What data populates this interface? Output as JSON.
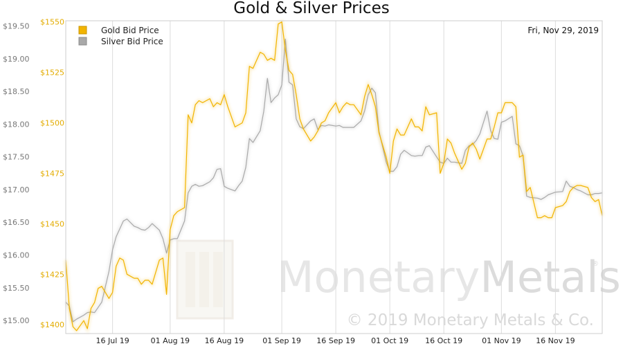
{
  "chart_data": {
    "type": "line",
    "title": "Gold & Silver Prices",
    "date_label": "Fri, Nov 29, 2019",
    "x_ticks": [
      "16 Jul 19",
      "01 Aug 19",
      "16 Aug 19",
      "01 Sep 19",
      "16 Sep 19",
      "01 Oct 19",
      "16 Oct 19",
      "01 Nov 19",
      "16 Nov 19"
    ],
    "x_range": [
      "2019-07-03",
      "2019-11-29"
    ],
    "y_left": {
      "unit_prefix": "$",
      "ylim": [
        14.8,
        19.58
      ],
      "ticks": [
        "$15.00",
        "$15.50",
        "$16.00",
        "$16.50",
        "$17.00",
        "$17.50",
        "$18.00",
        "$18.50",
        "$19.00",
        "$19.50"
      ]
    },
    "y_right": {
      "unit_prefix": "$",
      "ylim": [
        1395.6,
        1550.6
      ],
      "ticks": [
        "$1400",
        "$1425",
        "$1450",
        "$1475",
        "$1500",
        "$1525",
        "$1550"
      ]
    },
    "grid": "vertical",
    "legend": "top-left",
    "colors": {
      "gold": "#f2b400",
      "silver": "#a9a9a9"
    },
    "series": [
      {
        "name": "Gold Bid Price",
        "axis": "right",
        "x": [
          "2019-07-03",
          "2019-07-04",
          "2019-07-05",
          "2019-07-06",
          "2019-07-08",
          "2019-07-09",
          "2019-07-10",
          "2019-07-11",
          "2019-07-12",
          "2019-07-13",
          "2019-07-15",
          "2019-07-16",
          "2019-07-17",
          "2019-07-18",
          "2019-07-19",
          "2019-07-20",
          "2019-07-22",
          "2019-07-23",
          "2019-07-24",
          "2019-07-25",
          "2019-07-26",
          "2019-07-27",
          "2019-07-29",
          "2019-07-30",
          "2019-07-31",
          "2019-08-01",
          "2019-08-02",
          "2019-08-03",
          "2019-08-05",
          "2019-08-06",
          "2019-08-07",
          "2019-08-08",
          "2019-08-09",
          "2019-08-10",
          "2019-08-12",
          "2019-08-13",
          "2019-08-14",
          "2019-08-15",
          "2019-08-16",
          "2019-08-17",
          "2019-08-19",
          "2019-08-20",
          "2019-08-21",
          "2019-08-22",
          "2019-08-23",
          "2019-08-24",
          "2019-08-26",
          "2019-08-27",
          "2019-08-28",
          "2019-08-29",
          "2019-08-30",
          "2019-08-31",
          "2019-09-01",
          "2019-09-02",
          "2019-09-03",
          "2019-09-04",
          "2019-09-05",
          "2019-09-06",
          "2019-09-07",
          "2019-09-09",
          "2019-09-10",
          "2019-09-11",
          "2019-09-12",
          "2019-09-13",
          "2019-09-14",
          "2019-09-16",
          "2019-09-17",
          "2019-09-18",
          "2019-09-19",
          "2019-09-20",
          "2019-09-21",
          "2019-09-23",
          "2019-09-24",
          "2019-09-25",
          "2019-09-26",
          "2019-09-27",
          "2019-09-28",
          "2019-09-30",
          "2019-10-01",
          "2019-10-02",
          "2019-10-03",
          "2019-10-04",
          "2019-10-05",
          "2019-10-07",
          "2019-10-08",
          "2019-10-09",
          "2019-10-10",
          "2019-10-11",
          "2019-10-12",
          "2019-10-14",
          "2019-10-15",
          "2019-10-16",
          "2019-10-17",
          "2019-10-18",
          "2019-10-19",
          "2019-10-21",
          "2019-10-22",
          "2019-10-23",
          "2019-10-24",
          "2019-10-25",
          "2019-10-26",
          "2019-10-28",
          "2019-10-29",
          "2019-10-30",
          "2019-10-31",
          "2019-11-01",
          "2019-11-02",
          "2019-11-04",
          "2019-11-05",
          "2019-11-06",
          "2019-11-07",
          "2019-11-08",
          "2019-11-09",
          "2019-11-11",
          "2019-11-12",
          "2019-11-13",
          "2019-11-14",
          "2019-11-15",
          "2019-11-16",
          "2019-11-18",
          "2019-11-19",
          "2019-11-20",
          "2019-11-21",
          "2019-11-22",
          "2019-11-23",
          "2019-11-25",
          "2019-11-26",
          "2019-11-27",
          "2019-11-28",
          "2019-11-29"
        ],
        "values": [
          1432,
          1408,
          1399,
          1397,
          1402,
          1398,
          1408,
          1411,
          1418,
          1419,
          1413,
          1416,
          1429,
          1433,
          1432,
          1425,
          1423,
          1423,
          1420,
          1422,
          1422,
          1420,
          1432,
          1433,
          1415,
          1447,
          1454,
          1456,
          1458,
          1504,
          1500,
          1509,
          1511,
          1510,
          1512,
          1508,
          1510,
          1509,
          1514,
          1508,
          1498,
          1499,
          1500,
          1505,
          1528,
          1527,
          1535,
          1534,
          1531,
          1532,
          1531,
          1549,
          1550,
          1536,
          1526,
          1524,
          1514,
          1502,
          1497,
          1491,
          1493,
          1496,
          1500,
          1501,
          1505,
          1510,
          1505,
          1508,
          1510,
          1509,
          1509,
          1504,
          1513,
          1519,
          1514,
          1508,
          1495,
          1483,
          1475,
          1491,
          1497,
          1494,
          1494,
          1502,
          1498,
          1498,
          1496,
          1508,
          1504,
          1505,
          1475,
          1480,
          1492,
          1490,
          1485,
          1477,
          1480,
          1488,
          1490,
          1487,
          1482,
          1492,
          1492,
          1498,
          1505,
          1505,
          1510,
          1510,
          1508,
          1483,
          1484,
          1466,
          1468,
          1453,
          1453,
          1454,
          1453,
          1453,
          1458,
          1459,
          1461,
          1466,
          1468,
          1469,
          1469,
          1468,
          1463,
          1461,
          1462,
          1454
        ]
      },
      {
        "name": "Silver Bid Price",
        "axis": "left",
        "x": [
          "2019-07-03",
          "2019-07-04",
          "2019-07-05",
          "2019-07-06",
          "2019-07-08",
          "2019-07-09",
          "2019-07-10",
          "2019-07-11",
          "2019-07-12",
          "2019-07-13",
          "2019-07-15",
          "2019-07-16",
          "2019-07-17",
          "2019-07-18",
          "2019-07-19",
          "2019-07-20",
          "2019-07-22",
          "2019-07-23",
          "2019-07-24",
          "2019-07-25",
          "2019-07-26",
          "2019-07-27",
          "2019-07-29",
          "2019-07-30",
          "2019-07-31",
          "2019-08-01",
          "2019-08-02",
          "2019-08-03",
          "2019-08-05",
          "2019-08-06",
          "2019-08-07",
          "2019-08-08",
          "2019-08-09",
          "2019-08-10",
          "2019-08-12",
          "2019-08-13",
          "2019-08-14",
          "2019-08-15",
          "2019-08-16",
          "2019-08-17",
          "2019-08-19",
          "2019-08-20",
          "2019-08-21",
          "2019-08-22",
          "2019-08-23",
          "2019-08-24",
          "2019-08-26",
          "2019-08-27",
          "2019-08-28",
          "2019-08-29",
          "2019-08-30",
          "2019-08-31",
          "2019-09-01",
          "2019-09-02",
          "2019-09-03",
          "2019-09-04",
          "2019-09-05",
          "2019-09-06",
          "2019-09-07",
          "2019-09-09",
          "2019-09-10",
          "2019-09-11",
          "2019-09-12",
          "2019-09-13",
          "2019-09-14",
          "2019-09-16",
          "2019-09-17",
          "2019-09-18",
          "2019-09-19",
          "2019-09-20",
          "2019-09-21",
          "2019-09-23",
          "2019-09-24",
          "2019-09-25",
          "2019-09-26",
          "2019-09-27",
          "2019-09-28",
          "2019-09-30",
          "2019-10-01",
          "2019-10-02",
          "2019-10-03",
          "2019-10-04",
          "2019-10-05",
          "2019-10-07",
          "2019-10-08",
          "2019-10-09",
          "2019-10-10",
          "2019-10-11",
          "2019-10-12",
          "2019-10-14",
          "2019-10-15",
          "2019-10-16",
          "2019-10-17",
          "2019-10-18",
          "2019-10-19",
          "2019-10-21",
          "2019-10-22",
          "2019-10-23",
          "2019-10-24",
          "2019-10-25",
          "2019-10-26",
          "2019-10-28",
          "2019-10-29",
          "2019-10-30",
          "2019-10-31",
          "2019-11-01",
          "2019-11-02",
          "2019-11-04",
          "2019-11-05",
          "2019-11-06",
          "2019-11-07",
          "2019-11-08",
          "2019-11-09",
          "2019-11-11",
          "2019-11-12",
          "2019-11-13",
          "2019-11-14",
          "2019-11-15",
          "2019-11-16",
          "2019-11-18",
          "2019-11-19",
          "2019-11-20",
          "2019-11-21",
          "2019-11-22",
          "2019-11-23",
          "2019-11-25",
          "2019-11-26",
          "2019-11-27",
          "2019-11-28",
          "2019-11-29"
        ],
        "values": [
          15.28,
          15.22,
          14.98,
          15.02,
          15.08,
          15.12,
          15.13,
          15.12,
          15.2,
          15.28,
          15.75,
          16.08,
          16.28,
          16.4,
          16.52,
          16.55,
          16.44,
          16.42,
          16.39,
          16.38,
          16.42,
          16.48,
          16.38,
          16.25,
          16.03,
          16.23,
          16.25,
          16.25,
          16.52,
          16.95,
          17.05,
          17.08,
          17.05,
          17.06,
          17.12,
          17.18,
          17.31,
          17.32,
          17.05,
          17.02,
          16.98,
          17.06,
          17.13,
          17.34,
          17.78,
          17.72,
          17.9,
          18.2,
          18.7,
          18.33,
          18.4,
          18.45,
          18.6,
          19.3,
          18.64,
          18.6,
          18.08,
          17.96,
          17.93,
          18.05,
          18.08,
          17.92,
          17.98,
          17.97,
          17.99,
          17.97,
          17.98,
          17.95,
          17.95,
          17.95,
          17.95,
          18.05,
          18.2,
          18.45,
          18.55,
          18.48,
          17.89,
          17.42,
          17.28,
          17.28,
          17.35,
          17.54,
          17.6,
          17.52,
          17.51,
          17.52,
          17.52,
          17.65,
          17.67,
          17.5,
          17.42,
          17.4,
          17.48,
          17.42,
          17.42,
          17.4,
          17.6,
          17.67,
          17.69,
          17.75,
          17.85,
          18.2,
          17.9,
          17.78,
          17.77,
          18.03,
          18.05,
          18.12,
          17.7,
          17.67,
          17.52,
          16.9,
          16.88,
          16.87,
          16.85,
          16.88,
          16.92,
          16.94,
          16.96,
          16.97,
          17.13,
          17.05,
          17.03,
          17.0,
          16.98,
          16.92,
          16.92,
          16.94,
          16.94,
          16.95
        ]
      }
    ]
  },
  "watermark": {
    "brand_light": "Monetary",
    "brand_dark": "Metals",
    "registered": "®",
    "copyright": "© 2019 Monetary Metals & Co."
  }
}
